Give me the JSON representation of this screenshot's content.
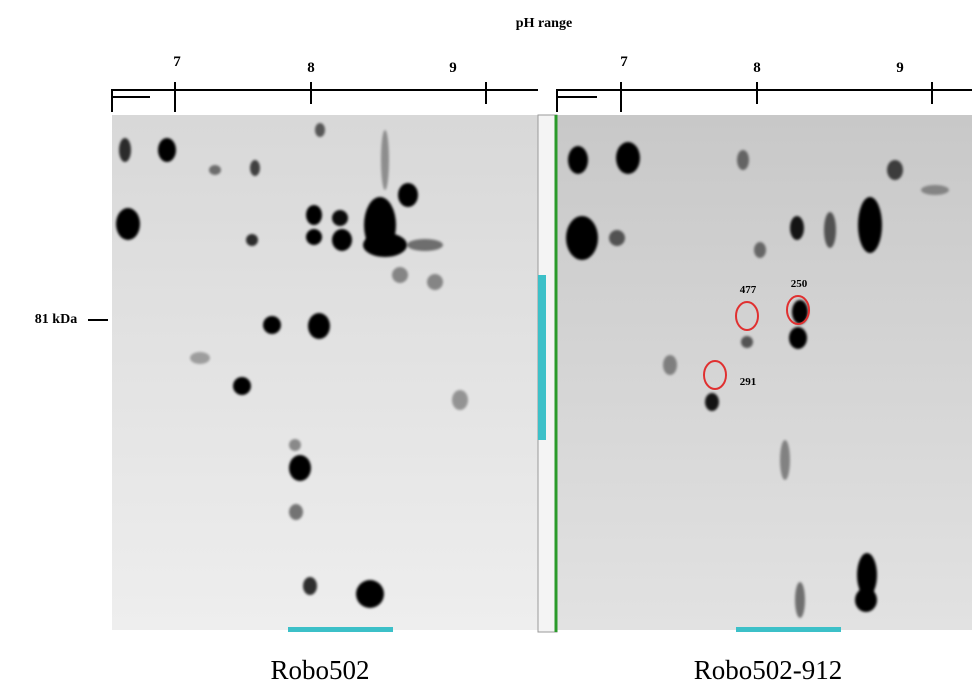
{
  "header": {
    "title": "pH range"
  },
  "marker": {
    "label": "81 kDa"
  },
  "panels": [
    {
      "label": "Robo502",
      "ph_ticks": [
        "7",
        "8",
        "9"
      ]
    },
    {
      "label": "Robo502-912",
      "ph_ticks": [
        "7",
        "8",
        "9"
      ],
      "spots": [
        {
          "label": "477"
        },
        {
          "label": "250"
        },
        {
          "label": "291"
        }
      ]
    }
  ]
}
